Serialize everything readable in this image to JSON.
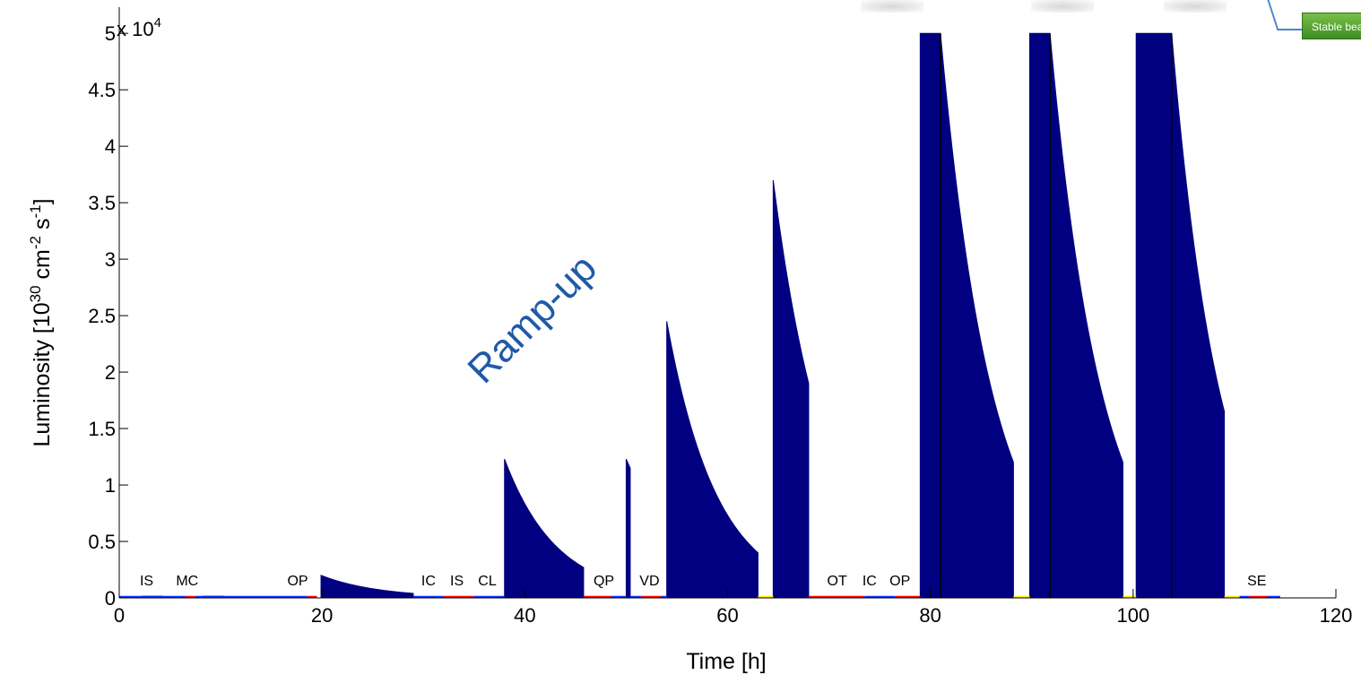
{
  "chart_data": {
    "type": "area",
    "xlabel": "Time [h]",
    "ylabel_text": "Luminosity [10",
    "ylabel_sup1": "30",
    "ylabel_mid1": " cm",
    "ylabel_sup2": "-2",
    "ylabel_mid2": " s",
    "ylabel_sup3": "-1",
    "ylabel_end": "]",
    "y_multiplier_base": "x 10",
    "y_multiplier_exp": "4",
    "xlim": [
      0,
      120
    ],
    "ylim": [
      0,
      5.2
    ],
    "x_ticks": [
      0,
      20,
      40,
      60,
      80,
      100,
      120
    ],
    "x_tick_labels": [
      "0",
      "20",
      "40",
      "60",
      "80",
      "100",
      "120"
    ],
    "y_ticks": [
      0,
      0.5,
      1,
      1.5,
      2,
      2.5,
      3,
      3.5,
      4,
      4.5,
      5
    ],
    "y_tick_labels": [
      "0",
      "0.5",
      "1",
      "1.5",
      "2",
      "2.5",
      "3",
      "3.5",
      "4",
      "4.5",
      "5"
    ],
    "fill_color": "#000080",
    "annotation": "Ramp-up",
    "annotation_color": "#1f5aa8",
    "fills": [
      {
        "start": 2.3,
        "end": 4.3,
        "peak": 0.015,
        "end_value": 0.015
      },
      {
        "start": 8.3,
        "end": 10.3,
        "peak": 0.015,
        "end_value": 0.015
      },
      {
        "start": 10.3,
        "end": 16.3,
        "peak": 0.008,
        "end_value": 0.008
      },
      {
        "start": 19.9,
        "end": 29.0,
        "peak": 0.2,
        "end_value": 0.04
      },
      {
        "start": 38.0,
        "end": 45.8,
        "peak": 1.23,
        "end_value": 0.27
      },
      {
        "start": 50.0,
        "end": 50.4,
        "peak": 1.23,
        "end_value": 1.15
      },
      {
        "start": 54.0,
        "end": 63.0,
        "peak": 2.45,
        "end_value": 0.4
      },
      {
        "start": 64.5,
        "end": 68.0,
        "peak": 3.7,
        "end_value": 1.9
      },
      {
        "start": 79.0,
        "end": 88.2,
        "peak": 5.0,
        "end_value": 1.2,
        "flat_until": 81.0,
        "divider": 81.0
      },
      {
        "start": 89.8,
        "end": 99.0,
        "peak": 5.0,
        "end_value": 1.2,
        "flat_until": 91.8,
        "divider": 91.8
      },
      {
        "start": 100.3,
        "end": 109.0,
        "peak": 5.0,
        "end_value": 1.65,
        "flat_until": 103.8,
        "divider": 103.8
      }
    ],
    "event_labels": [
      {
        "label": "IS",
        "x": 2.7
      },
      {
        "label": "MC",
        "x": 6.7
      },
      {
        "label": "OP",
        "x": 17.6
      },
      {
        "label": "IC",
        "x": 30.5
      },
      {
        "label": "IS",
        "x": 33.3
      },
      {
        "label": "CL",
        "x": 36.3
      },
      {
        "label": "QP",
        "x": 47.8
      },
      {
        "label": "VD",
        "x": 52.3
      },
      {
        "label": "OT",
        "x": 70.8
      },
      {
        "label": "IC",
        "x": 74.0
      },
      {
        "label": "OP",
        "x": 77.0
      },
      {
        "label": "SE",
        "x": 112.2
      }
    ],
    "baseline_segments": [
      {
        "start": 0,
        "end": 6.5,
        "color": "#0033ff"
      },
      {
        "start": 6.5,
        "end": 7.5,
        "color": "#ff0000"
      },
      {
        "start": 7.5,
        "end": 18.5,
        "color": "#0033ff"
      },
      {
        "start": 18.5,
        "end": 19.5,
        "color": "#ff0000"
      },
      {
        "start": 29.0,
        "end": 32.0,
        "color": "#0033ff"
      },
      {
        "start": 32.0,
        "end": 35.0,
        "color": "#ff0000"
      },
      {
        "start": 35.0,
        "end": 38.0,
        "color": "#0033ff"
      },
      {
        "start": 45.8,
        "end": 48.5,
        "color": "#ff0000"
      },
      {
        "start": 48.5,
        "end": 50.0,
        "color": "#0033ff"
      },
      {
        "start": 50.4,
        "end": 51.5,
        "color": "#0033ff"
      },
      {
        "start": 51.5,
        "end": 53.5,
        "color": "#ff0000"
      },
      {
        "start": 53.5,
        "end": 54.0,
        "color": "#0033ff"
      },
      {
        "start": 63.0,
        "end": 64.5,
        "color": "#ffee00"
      },
      {
        "start": 68.0,
        "end": 73.5,
        "color": "#ff0000"
      },
      {
        "start": 73.5,
        "end": 76.5,
        "color": "#0033ff"
      },
      {
        "start": 76.5,
        "end": 79.0,
        "color": "#ff0000"
      },
      {
        "start": 88.2,
        "end": 89.8,
        "color": "#ffee00"
      },
      {
        "start": 99.0,
        "end": 100.3,
        "color": "#ffee00"
      },
      {
        "start": 109.0,
        "end": 110.5,
        "color": "#ffee00"
      },
      {
        "start": 110.5,
        "end": 111.5,
        "color": "#0033ff"
      },
      {
        "start": 111.5,
        "end": 113.2,
        "color": "#ff0000"
      },
      {
        "start": 113.2,
        "end": 114.5,
        "color": "#0033ff"
      }
    ]
  },
  "callout": {
    "label": "Stable beams"
  }
}
